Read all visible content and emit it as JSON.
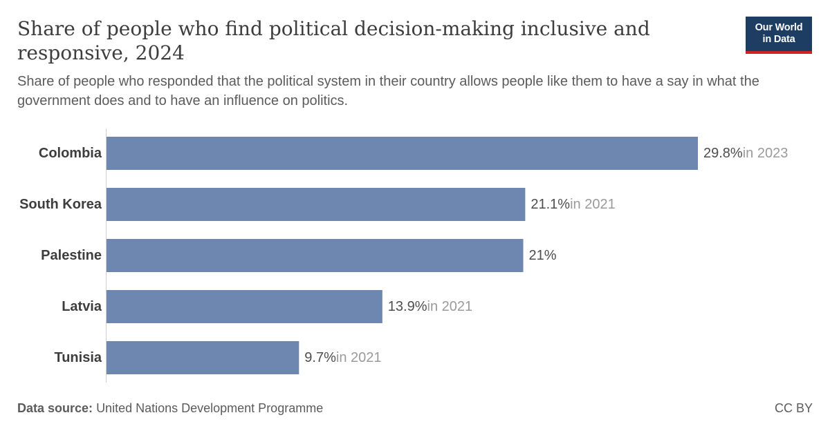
{
  "header": {
    "title": "Share of people who find political decision-making inclusive and responsive, 2024",
    "subtitle": "Share of people who responded that the political system in their country allows people like them to have a say in what the government does and to have an influence on politics.",
    "logo_line1": "Our World",
    "logo_line2": "in Data"
  },
  "chart_data": {
    "type": "bar",
    "orientation": "horizontal",
    "categories": [
      "Colombia",
      "South Korea",
      "Palestine",
      "Latvia",
      "Tunisia"
    ],
    "values": [
      29.8,
      21.1,
      21,
      13.9,
      9.7
    ],
    "value_labels": [
      "29.8%",
      "21.1%",
      "21%",
      "13.9%",
      "9.7%"
    ],
    "year_notes": [
      "in 2023",
      "in 2021",
      "",
      "in 2021",
      "in 2021"
    ],
    "unit": "%",
    "xlim": [
      0,
      29.8
    ],
    "grid": false,
    "bar_color": "#6d87b0"
  },
  "footer": {
    "source_label": "Data source:",
    "source_text": "United Nations Development Programme",
    "license": "CC BY"
  },
  "colors": {
    "bar": "#6d87b0",
    "logo_bg": "#1d3d63",
    "logo_accent": "#ce261e",
    "note_text": "#9a9a9a",
    "label_text": "#3d3d3d"
  }
}
